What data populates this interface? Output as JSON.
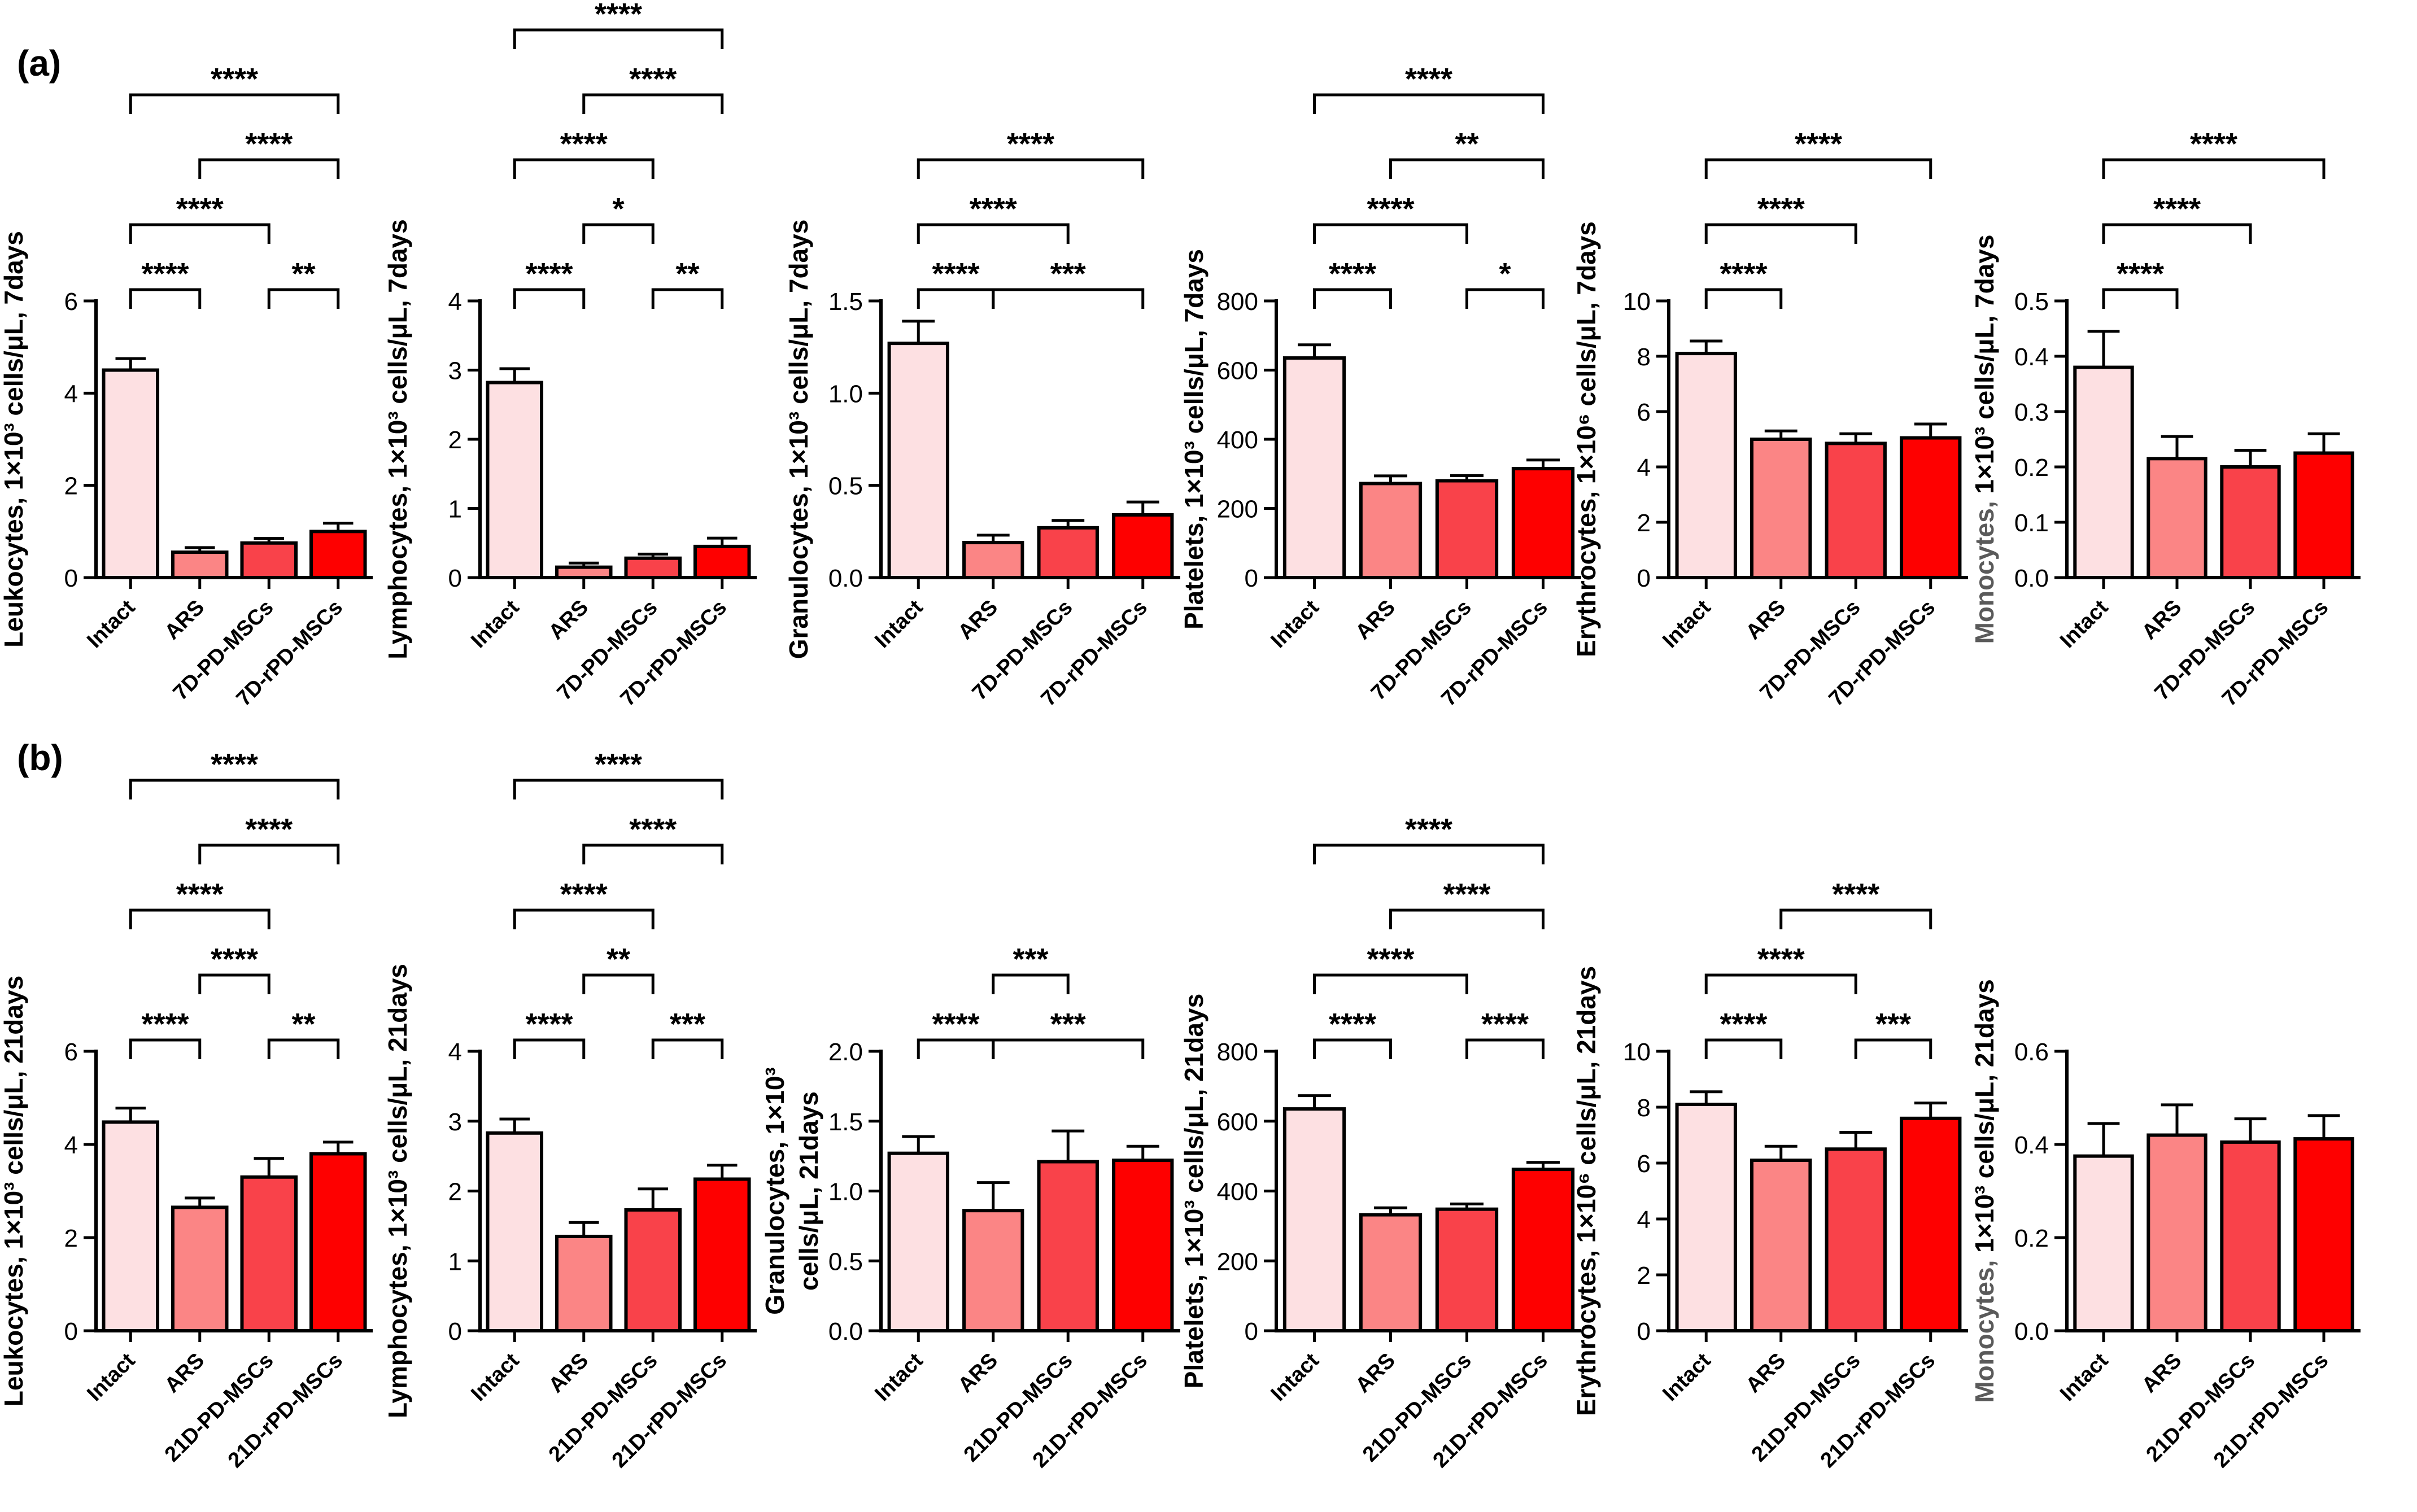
{
  "figure": {
    "panel_a_label": "(a)",
    "panel_b_label": "(b)"
  },
  "colors": {
    "intact": "#fde0e2",
    "ars": "#fb8585",
    "pd": "#f9424a",
    "rpd": "#fe0000",
    "axis": "#000000",
    "gray_label": "#5a5a5a"
  },
  "chart_data": [
    {
      "id": "a1",
      "type": "bar",
      "ylabel": "Leukocytes, 1×10³ cells/μL, 7days",
      "categories": [
        "Intact",
        "ARS",
        "7D-PD-MSCs",
        "7D-rPD-MSCs"
      ],
      "values": [
        4.5,
        0.55,
        0.75,
        1.0
      ],
      "errors": [
        0.25,
        0.1,
        0.1,
        0.18
      ],
      "ylim": [
        0,
        6
      ],
      "yticks": [
        "0",
        "2",
        "4",
        "6"
      ],
      "sig": [
        {
          "from": 0,
          "to": 1,
          "label": "****",
          "level": 0
        },
        {
          "from": 2,
          "to": 3,
          "label": "**",
          "level": 0
        },
        {
          "from": 0,
          "to": 2,
          "label": "****",
          "level": 1
        },
        {
          "from": 1,
          "to": 3,
          "label": "****",
          "level": 2
        },
        {
          "from": 0,
          "to": 3,
          "label": "****",
          "level": 3
        }
      ]
    },
    {
      "id": "a2",
      "type": "bar",
      "ylabel": "Lymphocytes, 1×10³ cells/μL, 7days",
      "categories": [
        "Intact",
        "ARS",
        "7D-PD-MSCs",
        "7D-rPD-MSCs"
      ],
      "values": [
        2.82,
        0.15,
        0.28,
        0.45
      ],
      "errors": [
        0.2,
        0.06,
        0.06,
        0.12
      ],
      "ylim": [
        0,
        4
      ],
      "yticks": [
        "0",
        "1",
        "2",
        "3",
        "4"
      ],
      "sig": [
        {
          "from": 0,
          "to": 1,
          "label": "****",
          "level": 0
        },
        {
          "from": 2,
          "to": 3,
          "label": "**",
          "level": 0
        },
        {
          "from": 1,
          "to": 2,
          "label": "*",
          "level": 1
        },
        {
          "from": 0,
          "to": 2,
          "label": "****",
          "level": 2
        },
        {
          "from": 1,
          "to": 3,
          "label": "****",
          "level": 3
        },
        {
          "from": 0,
          "to": 3,
          "label": "****",
          "level": 4
        }
      ]
    },
    {
      "id": "a3",
      "type": "bar",
      "ylabel": "Granulocytes, 1×10³ cells/μL, 7days",
      "categories": [
        "Intact",
        "ARS",
        "7D-PD-MSCs",
        "7D-rPD-MSCs"
      ],
      "values": [
        1.27,
        0.19,
        0.27,
        0.34
      ],
      "errors": [
        0.12,
        0.04,
        0.04,
        0.07
      ],
      "ylim": [
        0,
        1.5
      ],
      "yticks": [
        "0.0",
        "0.5",
        "1.0",
        "1.5"
      ],
      "sig": [
        {
          "from": 0,
          "to": 1,
          "label": "****",
          "level": 0
        },
        {
          "from": 1,
          "to": 3,
          "label": "***",
          "level": 0
        },
        {
          "from": 0,
          "to": 2,
          "label": "****",
          "level": 1
        },
        {
          "from": 0,
          "to": 3,
          "label": "****",
          "level": 2
        }
      ]
    },
    {
      "id": "a4",
      "type": "bar",
      "ylabel": "Platelets, 1×10³ cells/μL, 7days",
      "categories": [
        "Intact",
        "ARS",
        "7D-PD-MSCs",
        "7D-rPD-MSCs"
      ],
      "values": [
        635,
        272,
        280,
        315
      ],
      "errors": [
        38,
        22,
        15,
        25
      ],
      "ylim": [
        0,
        800
      ],
      "yticks": [
        "0",
        "200",
        "400",
        "600",
        "800"
      ],
      "sig": [
        {
          "from": 0,
          "to": 1,
          "label": "****",
          "level": 0
        },
        {
          "from": 2,
          "to": 3,
          "label": "*",
          "level": 0
        },
        {
          "from": 0,
          "to": 2,
          "label": "****",
          "level": 1
        },
        {
          "from": 1,
          "to": 3,
          "label": "**",
          "level": 2
        },
        {
          "from": 0,
          "to": 3,
          "label": "****",
          "level": 3
        }
      ]
    },
    {
      "id": "a5",
      "type": "bar",
      "ylabel": "Erythrocytes, 1×10⁶ cells/μL, 7days",
      "categories": [
        "Intact",
        "ARS",
        "7D-PD-MSCs",
        "7D-rPD-MSCs"
      ],
      "values": [
        8.1,
        5.0,
        4.85,
        5.05
      ],
      "errors": [
        0.45,
        0.3,
        0.35,
        0.5
      ],
      "ylim": [
        0,
        10
      ],
      "yticks": [
        "0",
        "2",
        "4",
        "6",
        "8",
        "10"
      ],
      "sig": [
        {
          "from": 0,
          "to": 1,
          "label": "****",
          "level": 0
        },
        {
          "from": 0,
          "to": 2,
          "label": "****",
          "level": 1
        },
        {
          "from": 0,
          "to": 3,
          "label": "****",
          "level": 2
        }
      ]
    },
    {
      "id": "a6",
      "type": "bar",
      "ylabel_prefix": "Monocytes,",
      "ylabel": " 1×10³ cells/μL, 7days",
      "categories": [
        "Intact",
        "ARS",
        "7D-PD-MSCs",
        "7D-rPD-MSCs"
      ],
      "values": [
        0.38,
        0.215,
        0.2,
        0.225
      ],
      "errors": [
        0.065,
        0.04,
        0.03,
        0.035
      ],
      "ylim": [
        0,
        0.5
      ],
      "yticks": [
        "0.0",
        "0.1",
        "0.2",
        "0.3",
        "0.4",
        "0.5"
      ],
      "sig": [
        {
          "from": 0,
          "to": 1,
          "label": "****",
          "level": 0
        },
        {
          "from": 0,
          "to": 2,
          "label": "****",
          "level": 1
        },
        {
          "from": 0,
          "to": 3,
          "label": "****",
          "level": 2
        }
      ]
    },
    {
      "id": "b1",
      "type": "bar",
      "ylabel": "Leukocytes, 1×10³ cells/μL, 21days",
      "categories": [
        "Intact",
        "ARS",
        "21D-PD-MSCs",
        "21D-rPD-MSCs"
      ],
      "values": [
        4.48,
        2.65,
        3.3,
        3.8
      ],
      "errors": [
        0.3,
        0.2,
        0.4,
        0.25
      ],
      "ylim": [
        0,
        6
      ],
      "yticks": [
        "0",
        "2",
        "4",
        "6"
      ],
      "sig": [
        {
          "from": 0,
          "to": 1,
          "label": "****",
          "level": 0
        },
        {
          "from": 2,
          "to": 3,
          "label": "**",
          "level": 0
        },
        {
          "from": 1,
          "to": 2,
          "label": "****",
          "level": 1
        },
        {
          "from": 0,
          "to": 2,
          "label": "****",
          "level": 2
        },
        {
          "from": 1,
          "to": 3,
          "label": "****",
          "level": 3
        },
        {
          "from": 0,
          "to": 3,
          "label": "****",
          "level": 4
        }
      ]
    },
    {
      "id": "b2",
      "type": "bar",
      "ylabel": "Lymphocytes, 1×10³ cells/μL, 21days",
      "categories": [
        "Intact",
        "ARS",
        "21D-PD-MSCs",
        "21D-rPD-MSCs"
      ],
      "values": [
        2.83,
        1.35,
        1.73,
        2.17
      ],
      "errors": [
        0.2,
        0.2,
        0.3,
        0.2
      ],
      "ylim": [
        0,
        4
      ],
      "yticks": [
        "0",
        "1",
        "2",
        "3",
        "4"
      ],
      "sig": [
        {
          "from": 0,
          "to": 1,
          "label": "****",
          "level": 0
        },
        {
          "from": 2,
          "to": 3,
          "label": "***",
          "level": 0
        },
        {
          "from": 1,
          "to": 2,
          "label": "**",
          "level": 1
        },
        {
          "from": 0,
          "to": 2,
          "label": "****",
          "level": 2
        },
        {
          "from": 1,
          "to": 3,
          "label": "****",
          "level": 3
        },
        {
          "from": 0,
          "to": 3,
          "label": "****",
          "level": 4
        }
      ]
    },
    {
      "id": "b3",
      "type": "bar",
      "ylabel": "Granulocytes, 1×10³",
      "ylabel2": "cells/μL, 21days",
      "categories": [
        "Intact",
        "ARS",
        "21D-PD-MSCs",
        "21D-rPD-MSCs"
      ],
      "values": [
        1.27,
        0.86,
        1.21,
        1.22
      ],
      "errors": [
        0.12,
        0.2,
        0.22,
        0.1
      ],
      "ylim": [
        0,
        2.0
      ],
      "yticks": [
        "0.0",
        "0.5",
        "1.0",
        "1.5",
        "2.0"
      ],
      "sig": [
        {
          "from": 0,
          "to": 1,
          "label": "****",
          "level": 0
        },
        {
          "from": 1,
          "to": 3,
          "label": "***",
          "level": 0
        },
        {
          "from": 1,
          "to": 2,
          "label": "***",
          "level": 1
        }
      ]
    },
    {
      "id": "b4",
      "type": "bar",
      "ylabel": "Platelets, 1×10³ cells/μL, 21days",
      "categories": [
        "Intact",
        "ARS",
        "21D-PD-MSCs",
        "21D-rPD-MSCs"
      ],
      "values": [
        635,
        332,
        348,
        462
      ],
      "errors": [
        38,
        20,
        15,
        20
      ],
      "ylim": [
        0,
        800
      ],
      "yticks": [
        "0",
        "200",
        "400",
        "600",
        "800"
      ],
      "sig": [
        {
          "from": 0,
          "to": 1,
          "label": "****",
          "level": 0
        },
        {
          "from": 2,
          "to": 3,
          "label": "****",
          "level": 0
        },
        {
          "from": 0,
          "to": 2,
          "label": "****",
          "level": 1
        },
        {
          "from": 1,
          "to": 3,
          "label": "****",
          "level": 2
        },
        {
          "from": 0,
          "to": 3,
          "label": "****",
          "level": 3
        }
      ]
    },
    {
      "id": "b5",
      "type": "bar",
      "ylabel": "Erythrocytes, 1×10⁶ cells/μL, 21days",
      "categories": [
        "Intact",
        "ARS",
        "21D-PD-MSCs",
        "21D-rPD-MSCs"
      ],
      "values": [
        8.1,
        6.1,
        6.5,
        7.6
      ],
      "errors": [
        0.45,
        0.5,
        0.6,
        0.55
      ],
      "ylim": [
        0,
        10
      ],
      "yticks": [
        "0",
        "2",
        "4",
        "6",
        "8",
        "10"
      ],
      "sig": [
        {
          "from": 0,
          "to": 1,
          "label": "****",
          "level": 0
        },
        {
          "from": 2,
          "to": 3,
          "label": "***",
          "level": 0
        },
        {
          "from": 0,
          "to": 2,
          "label": "****",
          "level": 1
        },
        {
          "from": 1,
          "to": 3,
          "label": "****",
          "level": 2
        }
      ]
    },
    {
      "id": "b6",
      "type": "bar",
      "ylabel_prefix": "Monocytes,",
      "ylabel": " 1×10³ cells/μL, 21days",
      "categories": [
        "Intact",
        "ARS",
        "21D-PD-MSCs",
        "21D-rPD-MSCs"
      ],
      "values": [
        0.375,
        0.42,
        0.405,
        0.412
      ],
      "errors": [
        0.07,
        0.065,
        0.05,
        0.05
      ],
      "ylim": [
        0,
        0.6
      ],
      "yticks": [
        "0.0",
        "0.2",
        "0.4",
        "0.6"
      ],
      "sig": []
    }
  ]
}
